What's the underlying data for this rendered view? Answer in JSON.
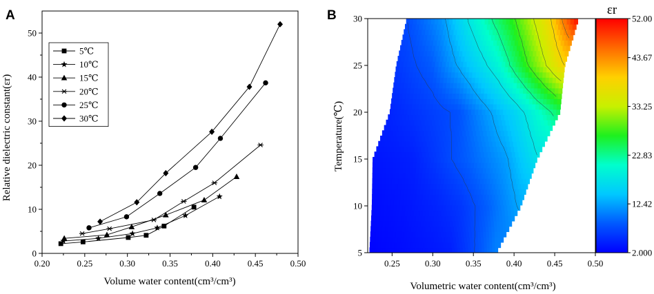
{
  "chart_data": [
    {
      "panel": "A",
      "type": "line",
      "xlabel": "Volume water content(cm³/cm³)",
      "ylabel": "Relative dielectric constant(εr)",
      "xlim": [
        0.2,
        0.5
      ],
      "ylim": [
        0,
        55
      ],
      "xticks": [
        "0.20",
        "0.25",
        "0.30",
        "0.35",
        "0.40",
        "0.45",
        "0.50"
      ],
      "yticks": [
        "0",
        "10",
        "20",
        "30",
        "40",
        "50"
      ],
      "legend_position": "top-left",
      "series": [
        {
          "name": "5℃",
          "marker": "square",
          "x": [
            0.222,
            0.248,
            0.301,
            0.322,
            0.343,
            0.378
          ],
          "y": [
            2.2,
            2.6,
            3.6,
            4.1,
            6.2,
            10.5
          ]
        },
        {
          "name": "10℃",
          "marker": "star",
          "x": [
            0.225,
            0.266,
            0.306,
            0.335,
            0.368,
            0.408
          ],
          "y": [
            2.8,
            3.4,
            4.5,
            5.8,
            8.6,
            12.9
          ]
        },
        {
          "name": "15℃",
          "marker": "triangle",
          "x": [
            0.226,
            0.276,
            0.305,
            0.345,
            0.39,
            0.428
          ],
          "y": [
            3.4,
            4.2,
            6.0,
            8.7,
            12.1,
            17.4
          ]
        },
        {
          "name": "20℃",
          "marker": "asterisk",
          "x": [
            0.247,
            0.279,
            0.331,
            0.366,
            0.402,
            0.456
          ],
          "y": [
            4.5,
            5.6,
            7.6,
            11.8,
            16.0,
            24.6
          ]
        },
        {
          "name": "25℃",
          "marker": "circle",
          "x": [
            0.255,
            0.299,
            0.338,
            0.38,
            0.409,
            0.462
          ],
          "y": [
            5.8,
            8.3,
            13.6,
            19.5,
            26.1,
            38.7
          ]
        },
        {
          "name": "30℃",
          "marker": "diamond",
          "x": [
            0.268,
            0.311,
            0.345,
            0.399,
            0.443,
            0.479
          ],
          "y": [
            7.2,
            11.6,
            18.2,
            27.6,
            37.8,
            52.0
          ]
        }
      ]
    },
    {
      "panel": "B",
      "type": "heatmap",
      "xlabel": "Volumetric water content(cm³/cm³)",
      "ylabel": "Temperature(℃)",
      "xlim": [
        0.22,
        0.5
      ],
      "ylim": [
        5,
        30
      ],
      "xticks": [
        "0.25",
        "0.30",
        "0.35",
        "0.40",
        "0.45",
        "0.50"
      ],
      "yticks": [
        "5",
        "10",
        "15",
        "20",
        "25",
        "30"
      ],
      "colorbar_title": "εr",
      "colorbar_ticks": [
        "2.000",
        "12.42",
        "22.83",
        "33.25",
        "43.67",
        "52.00"
      ],
      "colorbar_colors": [
        "#0000ff",
        "#0059ff",
        "#00c8ff",
        "#00ffcc",
        "#1ef01e",
        "#c8f000",
        "#ffd000",
        "#ff6a00",
        "#ff0000"
      ],
      "data_points": [
        {
          "T": 5,
          "x": [
            0.222,
            0.248,
            0.301,
            0.322,
            0.343,
            0.378
          ],
          "er": [
            2.2,
            2.6,
            3.6,
            4.1,
            6.2,
            10.5
          ]
        },
        {
          "T": 10,
          "x": [
            0.225,
            0.266,
            0.306,
            0.335,
            0.368,
            0.408
          ],
          "er": [
            2.8,
            3.4,
            4.5,
            5.8,
            8.6,
            12.9
          ]
        },
        {
          "T": 15,
          "x": [
            0.226,
            0.276,
            0.305,
            0.345,
            0.39,
            0.428
          ],
          "er": [
            3.4,
            4.2,
            6.0,
            8.7,
            12.1,
            17.4
          ]
        },
        {
          "T": 20,
          "x": [
            0.247,
            0.279,
            0.331,
            0.366,
            0.402,
            0.456
          ],
          "er": [
            4.5,
            5.6,
            7.6,
            11.8,
            16.0,
            24.6
          ]
        },
        {
          "T": 25,
          "x": [
            0.255,
            0.299,
            0.338,
            0.38,
            0.409,
            0.462
          ],
          "er": [
            5.8,
            8.3,
            13.6,
            19.5,
            26.1,
            38.7
          ]
        },
        {
          "T": 30,
          "x": [
            0.268,
            0.311,
            0.345,
            0.399,
            0.443,
            0.479
          ],
          "er": [
            7.2,
            11.6,
            18.2,
            27.6,
            37.8,
            52.0
          ]
        }
      ]
    }
  ]
}
